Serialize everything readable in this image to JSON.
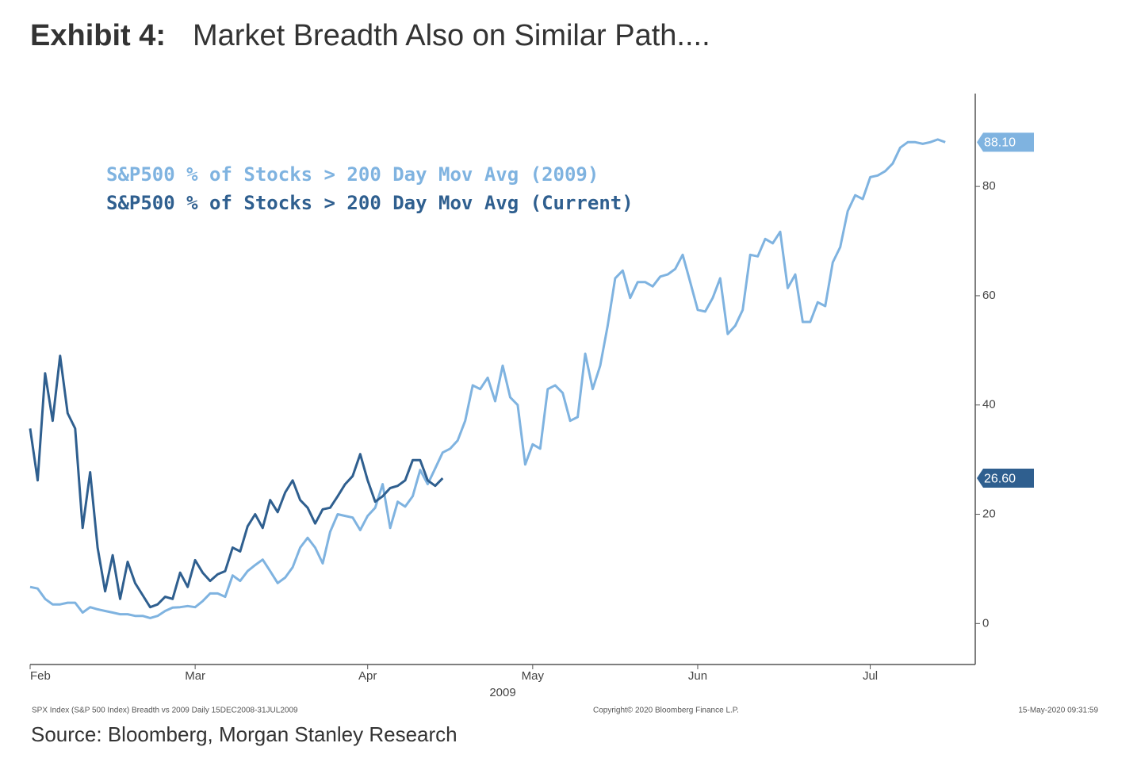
{
  "chart_data": {
    "type": "line",
    "title_label": "Exhibit 4:",
    "title": "Market Breadth Also on Similar Path....",
    "x_label": "2009",
    "footnote_left": "SPX Index (S&P 500 Index) Breadth vs 2009  Daily 15DEC2008-31JUL2009",
    "footnote_center": "Copyright© 2020 Bloomberg Finance L.P.",
    "footnote_right": "15-May-2020 09:31:59",
    "source": "Source: Bloomberg, Morgan Stanley Research",
    "categories": [
      "Feb",
      null,
      null,
      null,
      null,
      null,
      null,
      null,
      null,
      null,
      null,
      null,
      null,
      null,
      null,
      null,
      null,
      null,
      null,
      null,
      null,
      null,
      "Mar",
      null,
      null,
      null,
      null,
      null,
      null,
      null,
      null,
      null,
      null,
      null,
      null,
      null,
      null,
      null,
      null,
      null,
      null,
      null,
      null,
      null,
      null,
      "Apr",
      null,
      null,
      null,
      null,
      null,
      null,
      null,
      null,
      null,
      null,
      null,
      null,
      null,
      null,
      null,
      null,
      null,
      null,
      null,
      null,
      null,
      "May",
      null,
      null,
      null,
      null,
      null,
      null,
      null,
      null,
      null,
      null,
      null,
      null,
      null,
      null,
      null,
      null,
      null,
      null,
      null,
      null,
      null,
      "Jun",
      null,
      null,
      null,
      null,
      null,
      null,
      null,
      null,
      null,
      null,
      null,
      null,
      null,
      null,
      null,
      null,
      null,
      null,
      null,
      null,
      null,
      null,
      "Jul",
      null,
      null,
      null,
      null,
      null,
      null,
      null,
      null,
      null,
      null
    ],
    "series": [
      {
        "name": "S&P500 % of Stocks > 200 Day Mov Avg (2009)",
        "color": "#7fb3e0",
        "last_label": "88.10",
        "values": [
          6.7,
          6.4,
          4.5,
          3.5,
          3.5,
          3.8,
          3.8,
          2,
          3,
          2.6,
          2.3,
          2,
          1.7,
          1.7,
          1.4,
          1.4,
          1,
          1.4,
          2.3,
          2.9,
          3,
          3.2,
          3,
          4.1,
          5.5,
          5.5,
          4.9,
          8.8,
          7.8,
          9.6,
          10.7,
          11.7,
          9.6,
          7.4,
          8.4,
          10.3,
          13.9,
          15.7,
          13.9,
          11,
          16.8,
          20,
          19.7,
          19.4,
          17.1,
          19.7,
          21.2,
          25.5,
          17.5,
          22.3,
          21.4,
          23.3,
          28.1,
          25.5,
          28.4,
          31.3,
          32,
          33.5,
          37.1,
          43.6,
          42.9,
          45,
          40.7,
          47.2,
          41.4,
          40,
          29.1,
          32.8,
          32,
          42.9,
          43.6,
          42.2,
          37.1,
          37.8,
          49.4,
          42.9,
          47.2,
          54.5,
          63.2,
          64.6,
          59.6,
          62.5,
          62.5,
          61.7,
          63.5,
          63.9,
          64.9,
          67.5,
          62.5,
          57.4,
          57.1,
          59.6,
          63.2,
          53,
          54.5,
          57.4,
          67.5,
          67.2,
          70.4,
          69.6,
          71.7,
          61.4,
          63.9,
          55.2,
          55.2,
          58.8,
          58.1,
          66.1,
          68.9,
          75.5,
          78.4,
          77.7,
          81.7,
          82,
          82.8,
          84.2,
          87.1,
          88.1,
          88.1,
          87.8,
          88.1,
          88.6,
          88.1
        ]
      },
      {
        "name": "S&P500 % of Stocks > 200 Day Mov Avg (Current)",
        "color": "#2f5f8f",
        "last_label": "26.60",
        "values": [
          35.7,
          26.2,
          45.8,
          37.1,
          49,
          38.5,
          35.7,
          17.5,
          27.7,
          13.9,
          5.9,
          12.5,
          4.5,
          11.3,
          7.4,
          5.2,
          3,
          3.5,
          4.9,
          4.5,
          9.3,
          6.7,
          11.6,
          9.3,
          7.8,
          9,
          9.6,
          13.9,
          13.2,
          17.8,
          20,
          17.5,
          22.6,
          20.4,
          24,
          26.2,
          22.6,
          21.2,
          18.3,
          20.9,
          21.2,
          23.3,
          25.5,
          27,
          31,
          26.2,
          22.3,
          23.3,
          24.8,
          25.2,
          26.2,
          29.9,
          29.9,
          26.2,
          25.2,
          26.6,
          null,
          null,
          null,
          null,
          null,
          null,
          null,
          null,
          null,
          null,
          null,
          null,
          null,
          null,
          null,
          null,
          null,
          null,
          null,
          null,
          null,
          null,
          null,
          null,
          null,
          null,
          null,
          null,
          null,
          null,
          null,
          null,
          null,
          null,
          null,
          null,
          null,
          null,
          null,
          null,
          null,
          null,
          null,
          null,
          null,
          null,
          null,
          null,
          null,
          null,
          null,
          null,
          null,
          null,
          null,
          null,
          null,
          null,
          null,
          null,
          null,
          null,
          null,
          null,
          null,
          null,
          null
        ]
      }
    ],
    "ylim": [
      -7.5,
      97
    ],
    "yticks": [
      0,
      20,
      40,
      60,
      80
    ],
    "legend": "upper left",
    "grid": false
  }
}
